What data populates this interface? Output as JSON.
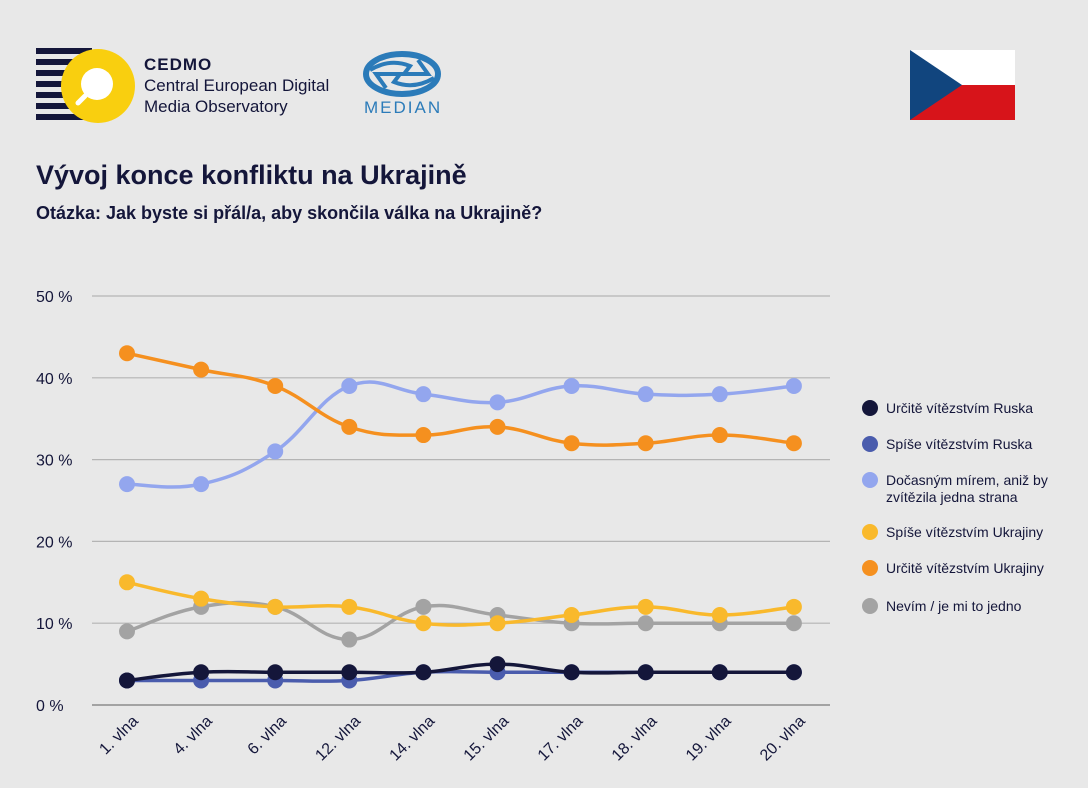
{
  "header": {
    "cedmo_name": "CEDMO",
    "cedmo_line1": "Central European Digital",
    "cedmo_line2": "Media Observatory",
    "median_name": "MEDIAN"
  },
  "colors": {
    "navy": "#14163a",
    "cedmo_yellow": "#f9cf0f",
    "median_blue": "#2b7bb9",
    "flag_red": "#d7141a",
    "flag_blue": "#11457e",
    "flag_white": "#ffffff"
  },
  "chart_data": {
    "type": "line",
    "title": "Vývoj konce konfliktu na Ukrajině",
    "subtitle": "Otázka: Jak byste si přál/a, aby skončila válka na Ukrajině?",
    "categories": [
      "1. vlna",
      "4. vlna",
      "6. vlna",
      "12. vlna",
      "14. vlna",
      "15. vlna",
      "17. vlna",
      "18. vlna",
      "19. vlna",
      "20. vlna"
    ],
    "ylim": [
      0,
      50
    ],
    "y_ticks": [
      0,
      10,
      20,
      30,
      40,
      50
    ],
    "y_tick_labels": [
      "0 %",
      "10 %",
      "20 %",
      "30 %",
      "40 %",
      "50 %"
    ],
    "grid": true,
    "legend_position": "right",
    "series": [
      {
        "name": "Určitě vítězstvím Ruska",
        "color": "#14163a",
        "values": [
          3,
          4,
          4,
          4,
          4,
          5,
          4,
          4,
          4,
          4
        ]
      },
      {
        "name": "Spíše vítězstvím Ruska",
        "color": "#4a5cad",
        "values": [
          3,
          3,
          3,
          3,
          4,
          4,
          4,
          4,
          4,
          4
        ]
      },
      {
        "name": "Dočasným mírem, aniž by zvítězila jedna strana",
        "color": "#93a6ee",
        "values": [
          27,
          27,
          31,
          39,
          38,
          37,
          39,
          38,
          38,
          39
        ]
      },
      {
        "name": "Spíše vítězstvím Ukrajiny",
        "color": "#f9b92c",
        "values": [
          15,
          13,
          12,
          12,
          10,
          10,
          11,
          12,
          11,
          12
        ]
      },
      {
        "name": "Určitě vítězstvím Ukrajiny",
        "color": "#f5901f",
        "values": [
          43,
          41,
          39,
          34,
          33,
          34,
          32,
          32,
          33,
          32
        ]
      },
      {
        "name": "Nevím / je mi to jedno",
        "color": "#a3a3a3",
        "values": [
          9,
          12,
          12,
          8,
          12,
          11,
          10,
          10,
          10,
          10
        ]
      }
    ]
  }
}
